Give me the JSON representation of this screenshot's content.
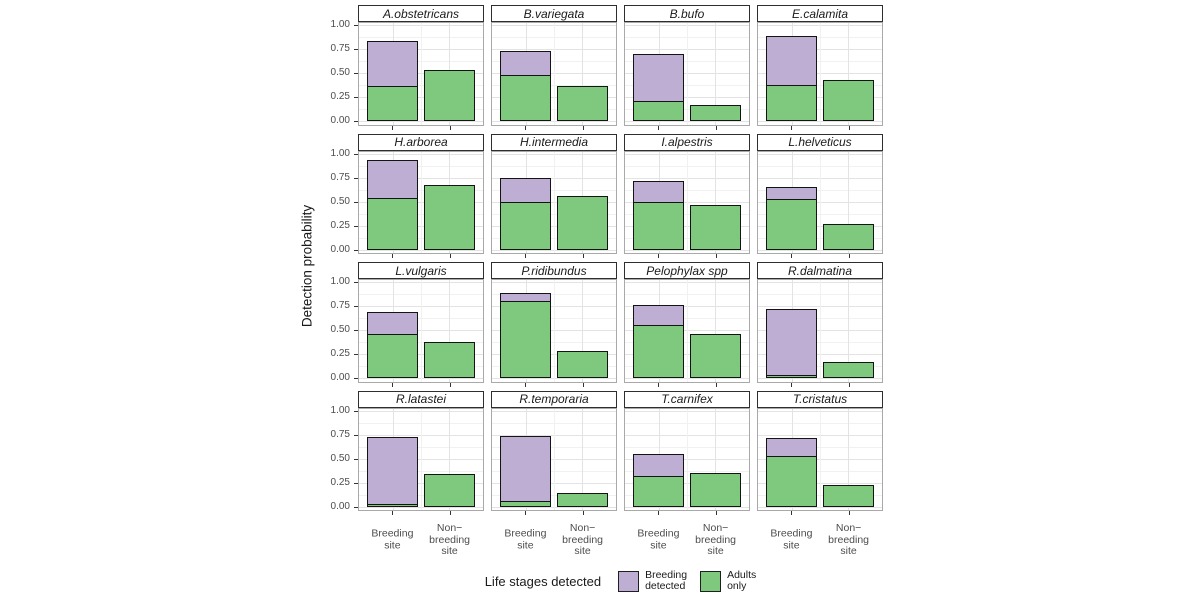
{
  "figure": {
    "y_axis_title": "Detection probability",
    "y_tick_labels": [
      "1.00",
      "0.75",
      "0.50",
      "0.25",
      "0.00"
    ],
    "x_categories": [
      {
        "id": "breeding_site",
        "label_lines": [
          "Breeding",
          "site"
        ]
      },
      {
        "id": "non_breeding_site",
        "label_lines": [
          "Non−",
          "breeding",
          "site"
        ]
      }
    ],
    "legend": {
      "title": "Life stages detected",
      "items": [
        {
          "id": "breeding_detected",
          "label_lines": [
            "Breeding",
            "detected"
          ],
          "color": "#BEAED4"
        },
        {
          "id": "adults_only",
          "label_lines": [
            "Adults",
            "only"
          ],
          "color": "#7FC97F"
        }
      ]
    }
  },
  "colors": {
    "breeding_detected": "#BEAED4",
    "adults_only": "#7FC97F",
    "bar_border": "#141414",
    "grid_major": "#e3e3e3",
    "grid_minor": "#f1f1f1",
    "panel_border": "#a9a9a9",
    "strip_border": "#2e2e2e",
    "tick_text": "#4d4d4d"
  },
  "chart_data": {
    "type": "bar",
    "stacked": true,
    "facet_grid": [
      4,
      4
    ],
    "ylabel": "Detection probability",
    "ylim": [
      0,
      1
    ],
    "yticks": [
      1.0,
      0.75,
      0.5,
      0.25,
      0.0
    ],
    "yticks_minor": [
      0.875,
      0.625,
      0.375,
      0.125
    ],
    "categories": [
      "Breeding site",
      "Non-breeding site"
    ],
    "series_order": [
      "Adults only",
      "Breeding detected"
    ],
    "legend_position": "bottom",
    "facets": [
      {
        "title": "A.obstetricans",
        "breeding_site": {
          "adults_only": 0.36,
          "breeding_detected": 0.47
        },
        "non_breeding_site": {
          "adults_only": 0.53,
          "breeding_detected": 0.0
        }
      },
      {
        "title": "B.variegata",
        "breeding_site": {
          "adults_only": 0.48,
          "breeding_detected": 0.25
        },
        "non_breeding_site": {
          "adults_only": 0.36,
          "breeding_detected": 0.0
        }
      },
      {
        "title": "B.bufo",
        "breeding_site": {
          "adults_only": 0.21,
          "breeding_detected": 0.49
        },
        "non_breeding_site": {
          "adults_only": 0.17,
          "breeding_detected": 0.0
        }
      },
      {
        "title": "E.calamita",
        "breeding_site": {
          "adults_only": 0.38,
          "breeding_detected": 0.51
        },
        "non_breeding_site": {
          "adults_only": 0.43,
          "breeding_detected": 0.0
        }
      },
      {
        "title": "H.arborea",
        "breeding_site": {
          "adults_only": 0.54,
          "breeding_detected": 0.39
        },
        "non_breeding_site": {
          "adults_only": 0.67,
          "breeding_detected": 0.0
        }
      },
      {
        "title": "H.intermedia",
        "breeding_site": {
          "adults_only": 0.5,
          "breeding_detected": 0.24
        },
        "non_breeding_site": {
          "adults_only": 0.56,
          "breeding_detected": 0.0
        }
      },
      {
        "title": "I.alpestris",
        "breeding_site": {
          "adults_only": 0.49,
          "breeding_detected": 0.22
        },
        "non_breeding_site": {
          "adults_only": 0.46,
          "breeding_detected": 0.0
        }
      },
      {
        "title": "L.helveticus",
        "breeding_site": {
          "adults_only": 0.53,
          "breeding_detected": 0.12
        },
        "non_breeding_site": {
          "adults_only": 0.27,
          "breeding_detected": 0.0
        }
      },
      {
        "title": "L.vulgaris",
        "breeding_site": {
          "adults_only": 0.46,
          "breeding_detected": 0.23
        },
        "non_breeding_site": {
          "adults_only": 0.37,
          "breeding_detected": 0.0
        }
      },
      {
        "title": "P.ridibundus",
        "breeding_site": {
          "adults_only": 0.8,
          "breeding_detected": 0.09
        },
        "non_breeding_site": {
          "adults_only": 0.28,
          "breeding_detected": 0.0
        }
      },
      {
        "title": "Pelophylax spp",
        "breeding_site": {
          "adults_only": 0.55,
          "breeding_detected": 0.21
        },
        "non_breeding_site": {
          "adults_only": 0.46,
          "breeding_detected": 0.0
        }
      },
      {
        "title": "R.dalmatina",
        "breeding_site": {
          "adults_only": 0.03,
          "breeding_detected": 0.69
        },
        "non_breeding_site": {
          "adults_only": 0.17,
          "breeding_detected": 0.0
        }
      },
      {
        "title": "R.latastei",
        "breeding_site": {
          "adults_only": 0.03,
          "breeding_detected": 0.69
        },
        "non_breeding_site": {
          "adults_only": 0.34,
          "breeding_detected": 0.0
        }
      },
      {
        "title": "R.temporaria",
        "breeding_site": {
          "adults_only": 0.06,
          "breeding_detected": 0.67
        },
        "non_breeding_site": {
          "adults_only": 0.14,
          "breeding_detected": 0.0
        }
      },
      {
        "title": "T.carnifex",
        "breeding_site": {
          "adults_only": 0.32,
          "breeding_detected": 0.23
        },
        "non_breeding_site": {
          "adults_only": 0.35,
          "breeding_detected": 0.0
        }
      },
      {
        "title": "T.cristatus",
        "breeding_site": {
          "adults_only": 0.53,
          "breeding_detected": 0.18
        },
        "non_breeding_site": {
          "adults_only": 0.22,
          "breeding_detected": 0.0
        }
      }
    ]
  }
}
